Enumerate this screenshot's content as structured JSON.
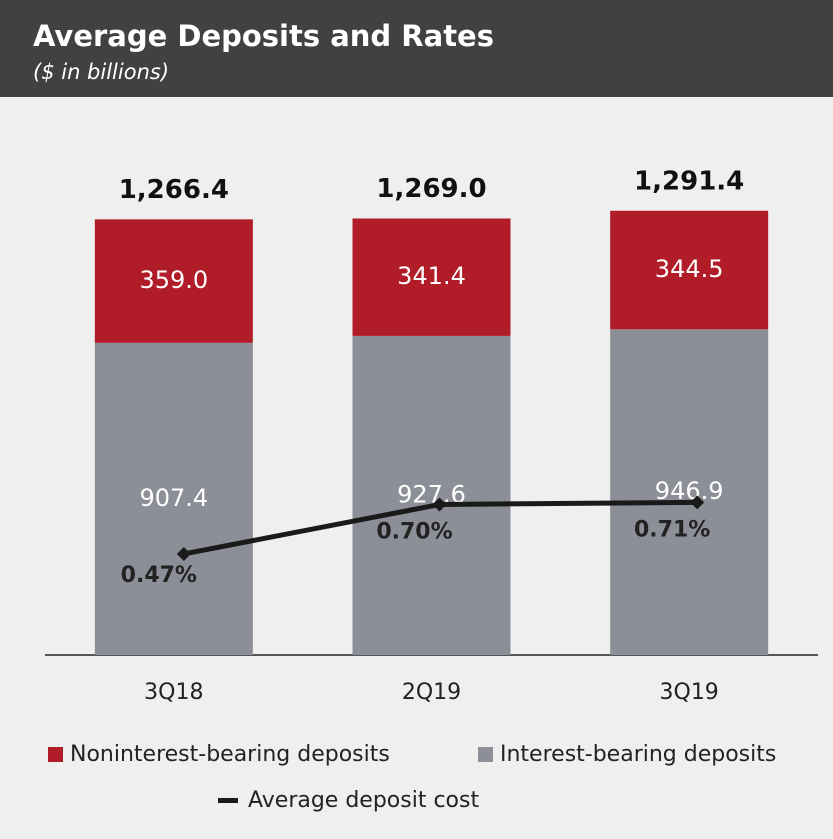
{
  "chart_data": {
    "type": "stacked_bar_line",
    "title": "Average Deposits and Rates",
    "subtitle": "($ in billions)",
    "categories": [
      "3Q18",
      "2Q19",
      "3Q19"
    ],
    "series": [
      {
        "name": "Interest-bearing deposits",
        "color": "#8c8f97",
        "values": [
          907.4,
          927.6,
          946.9
        ],
        "value_labels": [
          "907.4",
          "927.6",
          "946.9"
        ]
      },
      {
        "name": "Noninterest-bearing deposits",
        "color": "#b01c27",
        "values": [
          359.0,
          341.4,
          344.5
        ],
        "value_labels": [
          "359.0",
          "341.4",
          "344.5"
        ]
      },
      {
        "name": "Average deposit cost",
        "color": "#1a1a1a",
        "type": "line",
        "axis": "y2",
        "values": [
          0.47,
          0.7,
          0.71
        ],
        "value_labels": [
          "0.47%",
          "0.70%",
          "0.71%"
        ]
      }
    ],
    "totals": [
      1266.4,
      1269.0,
      1291.4
    ],
    "total_labels": [
      "1,266.4",
      "1,269.0",
      "1,291.4"
    ],
    "ylim": [
      0,
      1500
    ],
    "y2lim": [
      0,
      2.4
    ]
  }
}
